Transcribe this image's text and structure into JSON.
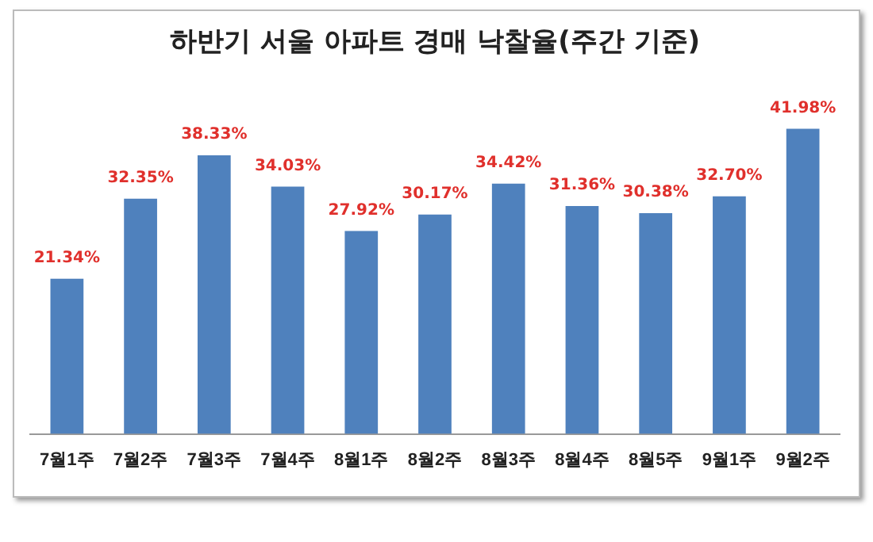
{
  "chart_data": {
    "type": "bar",
    "title": "하반기 서울 아파트 경매 낙찰율(주간 기준)",
    "categories": [
      "7월1주",
      "7월2주",
      "7월3주",
      "7월4주",
      "8월1주",
      "8월2주",
      "8월3주",
      "8월4주",
      "8월5주",
      "9월1주",
      "9월2주"
    ],
    "series": [
      {
        "color": "#4f81bd",
        "values": [
          21.34,
          32.35,
          38.33,
          34.03,
          27.92,
          30.17,
          34.42,
          31.36,
          30.38,
          32.7,
          41.98
        ],
        "value_labels": [
          "21.34%",
          "32.35%",
          "38.33%",
          "34.03%",
          "27.92%",
          "30.17%",
          "34.42%",
          "31.36%",
          "30.38%",
          "32.70%",
          "41.98%"
        ]
      }
    ],
    "tick_labels": "x",
    "grid": false,
    "legend": false
  }
}
